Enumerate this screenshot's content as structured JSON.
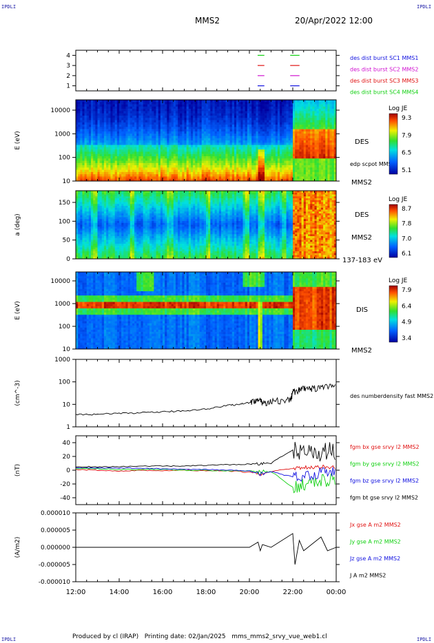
{
  "header": {
    "corner_label": "IPDLI",
    "title": "MMS2",
    "date": "20/Apr/2022 12:00"
  },
  "footer": {
    "text": "Produced by cl (IRAP)   Printing date: 02/Jan/2025   mms_mms2_srvy_vue_web1.cl"
  },
  "colors": {
    "red": "#e01010",
    "green": "#10d010",
    "blue": "#1010e0",
    "magenta": "#d010d0",
    "black": "#000000"
  },
  "chart_data": [
    {
      "type": "line",
      "panel": "availability",
      "yticks": [
        "1",
        "2",
        "3",
        "4"
      ],
      "ylim": [
        0.5,
        4.5
      ],
      "labels": [
        {
          "text": "des dist burst SC1 MMS1",
          "color": "#1010e0"
        },
        {
          "text": "des dist burst SC2 MMS2",
          "color": "#d010d0"
        },
        {
          "text": "des dist burst SC3 MMS3",
          "color": "#e01010"
        },
        {
          "text": "des dist burst SC4 MMS4",
          "color": "#10d010"
        }
      ],
      "segments": [
        {
          "sc": 4,
          "start": 20.38,
          "end": 20.69
        },
        {
          "sc": 4,
          "start": 21.88,
          "end": 22.31
        },
        {
          "sc": 3,
          "start": 20.38,
          "end": 20.69
        },
        {
          "sc": 3,
          "start": 21.88,
          "end": 22.31
        },
        {
          "sc": 2,
          "start": 20.38,
          "end": 20.69
        },
        {
          "sc": 2,
          "start": 21.88,
          "end": 22.31
        },
        {
          "sc": 1,
          "start": 20.38,
          "end": 20.69
        },
        {
          "sc": 1,
          "start": 21.88,
          "end": 22.31
        }
      ]
    },
    {
      "type": "heatmap",
      "panel": "des_energy",
      "ylabel": "E (eV)",
      "yticks": [
        "10000",
        "1000",
        "100",
        "10"
      ],
      "label": "DES",
      "extra_label": "edp scpot MMS2",
      "sc_label": "MMS2",
      "colorbar": {
        "title": "Log JE",
        "ticks": [
          "9.3",
          "7.9",
          "6.5",
          "5.1"
        ]
      }
    },
    {
      "type": "heatmap",
      "panel": "des_pitch",
      "ylabel": "a (deg)",
      "yticks": [
        "150",
        "100",
        "50",
        "0"
      ],
      "label": "DES",
      "sc_label": "MMS2",
      "energy_range": "137-183 eV",
      "colorbar": {
        "title": "Log JE",
        "ticks": [
          "8.7",
          "7.8",
          "7.0",
          "6.1"
        ]
      }
    },
    {
      "type": "heatmap",
      "panel": "dis_energy",
      "ylabel": "E (eV)",
      "yticks": [
        "10000",
        "1000",
        "100",
        "10"
      ],
      "label": "DIS",
      "sc_label": "MMS2",
      "colorbar": {
        "title": "Log JE",
        "ticks": [
          "7.9",
          "6.4",
          "4.9",
          "3.4"
        ]
      }
    },
    {
      "type": "line",
      "panel": "density",
      "ylabel": "(cm^-3)",
      "yticks": [
        "1000",
        "100",
        "10",
        "1"
      ],
      "ylim": [
        1,
        1000
      ],
      "yscale": "log",
      "series": [
        {
          "name": "des numberdensity fast MMS2",
          "color": "#000000",
          "x": [
            12.0,
            13.0,
            14.0,
            15.0,
            16.0,
            17.0,
            18.0,
            19.0,
            19.5,
            20.0,
            20.3,
            20.5,
            20.6,
            21.0,
            21.5,
            21.9,
            22.0,
            22.3,
            22.6,
            23.0,
            23.5,
            24.0
          ],
          "y": [
            3.5,
            3.6,
            4.0,
            4.2,
            4.6,
            5.2,
            6.2,
            9,
            10,
            12,
            16,
            14,
            12,
            14,
            15,
            16,
            35,
            48,
            50,
            52,
            58,
            62
          ]
        }
      ]
    },
    {
      "type": "line",
      "panel": "magnetic_field",
      "ylabel": "(nT)",
      "yticks": [
        "40",
        "20",
        "0",
        "-20",
        "-40"
      ],
      "ylim": [
        -50,
        50
      ],
      "series": [
        {
          "name": "fgm bx gse srvy l2 MMS2",
          "color": "#e01010",
          "x": [
            12,
            13,
            14,
            15,
            16,
            17,
            18,
            19,
            20,
            20.5,
            21,
            22,
            22.5,
            23,
            23.5,
            24
          ],
          "y": [
            1,
            0,
            -1,
            0,
            -1,
            0,
            -1,
            -1,
            -3,
            -5,
            -2,
            3,
            4,
            3,
            5,
            5
          ]
        },
        {
          "name": "fgm by gse srvy l2 MMS2",
          "color": "#10d010",
          "x": [
            12,
            13,
            14,
            15,
            16,
            17,
            18,
            19,
            20,
            20.5,
            21,
            22,
            22.5,
            23,
            23.5,
            24
          ],
          "y": [
            2,
            2,
            1,
            1,
            1,
            0,
            0,
            -1,
            -1,
            -3,
            -2,
            -25,
            -20,
            -18,
            -15,
            -12
          ]
        },
        {
          "name": "fgm bz gse srvy l2 MMS2",
          "color": "#1010e0",
          "x": [
            12,
            13,
            14,
            15,
            16,
            17,
            18,
            19,
            20,
            20.5,
            21,
            22,
            22.5,
            23,
            23.5,
            24
          ],
          "y": [
            4,
            3,
            3,
            3,
            2,
            1,
            1,
            0,
            -1,
            -6,
            -2,
            -10,
            -8,
            -5,
            -3,
            0
          ]
        },
        {
          "name": "fgm bt gse srvy l2 MMS2",
          "color": "#000000",
          "x": [
            12,
            13,
            14,
            15,
            16,
            17,
            18,
            19,
            20,
            20.5,
            21,
            22,
            22.5,
            23,
            23.5,
            24
          ],
          "y": [
            5,
            5,
            5,
            6,
            6,
            6,
            7,
            8,
            9,
            10,
            10,
            30,
            28,
            26,
            27,
            28
          ]
        }
      ]
    },
    {
      "type": "line",
      "panel": "current_density",
      "ylabel": "(A/m2)",
      "yticks": [
        "0.000010",
        "0.000005",
        "0.000000",
        "-0.000005",
        "-0.000010"
      ],
      "ylim": [
        -1e-05,
        1e-05
      ],
      "series": [
        {
          "name": "Jx gse A m2 MMS2",
          "color": "#e01010"
        },
        {
          "name": "Jy gse A m2 MMS2",
          "color": "#10d010"
        },
        {
          "name": "Jz gse A m2 MMS2",
          "color": "#1010e0"
        },
        {
          "name": "J A m2 MMS2",
          "color": "#000000"
        }
      ],
      "x": [
        12,
        16,
        20,
        20.4,
        20.5,
        20.6,
        21,
        22,
        22.1,
        22.3,
        22.5,
        23,
        23.3,
        23.6,
        24
      ],
      "y": [
        0,
        0,
        0,
        1.5e-06,
        -1e-06,
        8e-07,
        0,
        4e-06,
        -5e-06,
        2e-06,
        -1e-06,
        1.5e-06,
        3e-06,
        -1e-06,
        0
      ]
    }
  ],
  "xaxis": {
    "ticks": [
      "12:00",
      "14:00",
      "16:00",
      "18:00",
      "20:00",
      "22:00",
      "00:00"
    ],
    "range": [
      12,
      24
    ]
  }
}
